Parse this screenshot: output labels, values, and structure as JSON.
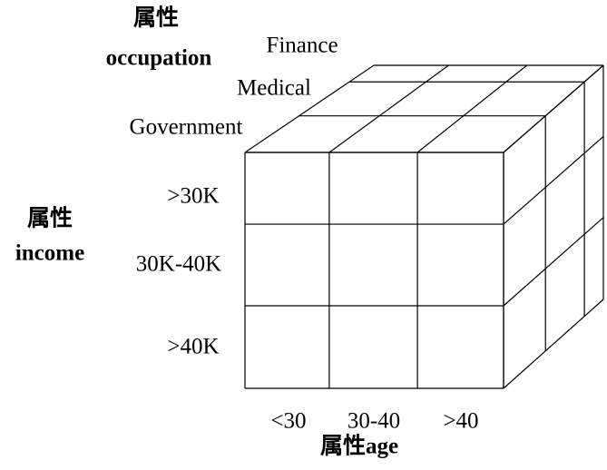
{
  "occupation": {
    "title": "属性",
    "name": "occupation",
    "values": [
      "Finance",
      "Medical",
      "Government"
    ]
  },
  "income": {
    "title": "属性",
    "name": "income",
    "values": [
      ">30K",
      "30K-40K",
      ">40K"
    ]
  },
  "age": {
    "title": "属性",
    "name": "age",
    "values": [
      "<30",
      "30-40",
      ">40"
    ]
  }
}
